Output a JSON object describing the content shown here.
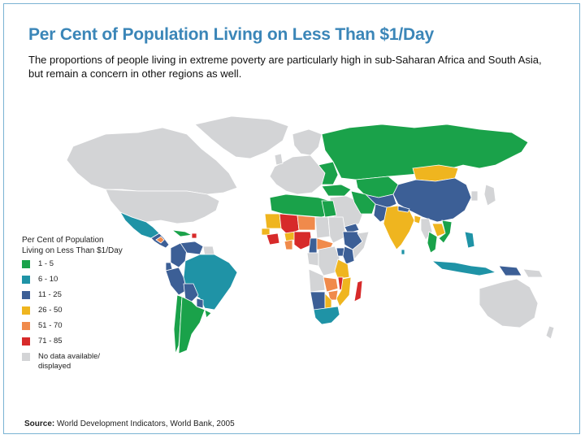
{
  "title": "Per Cent of Population Living on Less Than $1/Day",
  "subtitle": "The proportions of people living in extreme poverty are particularly high in sub-Saharan Africa and South Asia, but remain a concern in other regions as well.",
  "legend": {
    "title_line1": "Per Cent of Population",
    "title_line2": "Living on Less Than $1/Day",
    "items": [
      {
        "label": "1 - 5",
        "color": "#1aa24a"
      },
      {
        "label": "6 - 10",
        "color": "#1f93a6"
      },
      {
        "label": "11 - 25",
        "color": "#3c5f96"
      },
      {
        "label": "26 - 50",
        "color": "#efb51f"
      },
      {
        "label": "51 - 70",
        "color": "#f08a4b"
      },
      {
        "label": "71 - 85",
        "color": "#d72a2a"
      },
      {
        "label": "No data available/ displayed",
        "color": "#d3d4d6"
      }
    ]
  },
  "source": {
    "label": "Source:",
    "text": "World Development Indicators, World Bank, 2005"
  }
}
